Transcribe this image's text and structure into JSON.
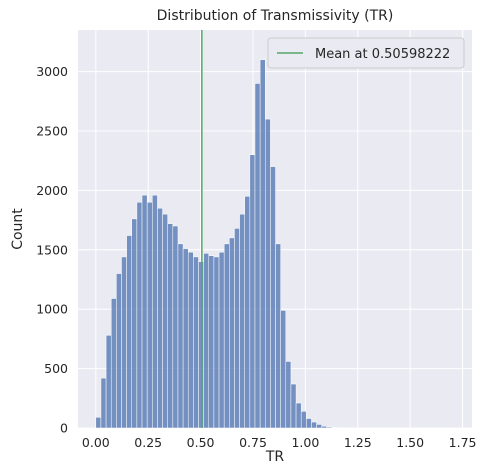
{
  "chart_data": {
    "type": "bar",
    "title": "Distribution of Transmissivity (TR)",
    "xlabel": "TR",
    "ylabel": "Count",
    "xlim": [
      -0.085,
      1.795
    ],
    "ylim": [
      0,
      3350
    ],
    "x_ticks": [
      0.0,
      0.25,
      0.5,
      0.75,
      1.0,
      1.25,
      1.5,
      1.75
    ],
    "x_tick_labels": [
      "0.00",
      "0.25",
      "0.50",
      "0.75",
      "1.00",
      "1.25",
      "1.50",
      "1.75"
    ],
    "y_ticks": [
      0,
      500,
      1000,
      1500,
      2000,
      2500,
      3000
    ],
    "y_tick_labels": [
      "0",
      "500",
      "1000",
      "1500",
      "2000",
      "2500",
      "3000"
    ],
    "grid": true,
    "bin_width": 0.0245,
    "bins_start": [
      0.0,
      0.0245,
      0.049,
      0.0735,
      0.098,
      0.1225,
      0.147,
      0.1715,
      0.196,
      0.2205,
      0.245,
      0.2695,
      0.294,
      0.3185,
      0.343,
      0.3675,
      0.392,
      0.4165,
      0.441,
      0.4655,
      0.49,
      0.5145,
      0.539,
      0.5635,
      0.588,
      0.6125,
      0.637,
      0.6615,
      0.686,
      0.7105,
      0.735,
      0.7595,
      0.784,
      0.8085,
      0.833,
      0.8575,
      0.882,
      0.9065,
      0.931,
      0.9555,
      0.98,
      1.0045,
      1.029,
      1.0535,
      1.078,
      1.1025,
      1.127,
      1.1515
    ],
    "counts": [
      90,
      420,
      780,
      1090,
      1300,
      1440,
      1620,
      1760,
      1900,
      1960,
      1900,
      1960,
      1850,
      1800,
      1720,
      1700,
      1550,
      1510,
      1480,
      1440,
      1400,
      1470,
      1450,
      1440,
      1480,
      1550,
      1600,
      1680,
      1800,
      1950,
      2300,
      2900,
      3100,
      2600,
      2200,
      1550,
      990,
      560,
      370,
      210,
      140,
      80,
      50,
      30,
      15,
      8,
      4,
      2
    ],
    "bar_color": "#4c72b0",
    "mean_line": {
      "x": 0.50598222,
      "color": "#55a868",
      "label": "Mean at 0.50598222"
    },
    "legend": {
      "position": "top-right",
      "entries": [
        "Mean at 0.50598222"
      ]
    },
    "background": "#eaeaf2",
    "grid_color": "#ffffff"
  }
}
